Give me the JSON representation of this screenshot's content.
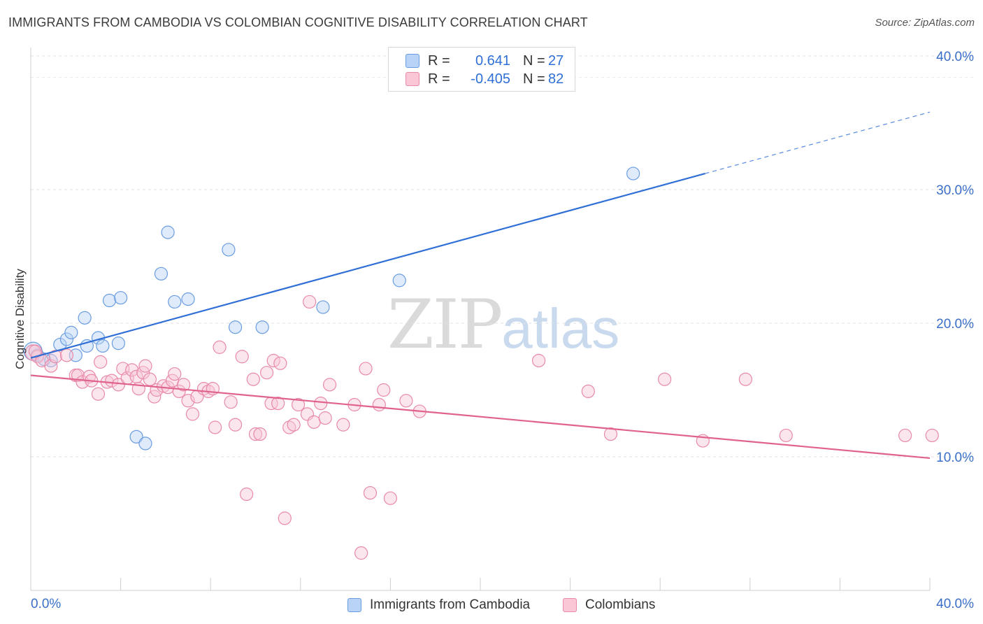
{
  "header": {
    "title": "IMMIGRANTS FROM CAMBODIA VS COLOMBIAN COGNITIVE DISABILITY CORRELATION CHART",
    "source": "Source: ZipAtlas.com"
  },
  "watermark": {
    "zip": "ZIP",
    "atlas": "atlas"
  },
  "legend": {
    "r_label": "R =",
    "n_label": "N =",
    "series": [
      {
        "name": "Immigrants from Cambodia",
        "r": "0.641",
        "n": "27",
        "fill": "#b9d3f6",
        "stroke": "#6a9de0",
        "line": "#2f6fd6"
      },
      {
        "name": "Colombians",
        "r": "-0.405",
        "n": "82",
        "fill": "#f9c7d6",
        "stroke": "#e88aa8",
        "line": "#e0628f"
      }
    ]
  },
  "chart_data": {
    "type": "scatter",
    "title": "IMMIGRANTS FROM CAMBODIA VS COLOMBIAN COGNITIVE DISABILITY CORRELATION CHART",
    "xlabel": "",
    "ylabel": "Cognitive Disability",
    "xlim": [
      0,
      40
    ],
    "ylim": [
      0,
      40
    ],
    "x_tick_labels": [
      "0.0%",
      "40.0%"
    ],
    "y_ticks": [
      10,
      20,
      30,
      40
    ],
    "y_tick_labels": [
      "10.0%",
      "20.0%",
      "30.0%",
      "40.0%"
    ],
    "grid": true,
    "legend_position": "top-center",
    "series": [
      {
        "name": "Immigrants from Cambodia",
        "r": 0.641,
        "n": 27,
        "color": "#6a9de0",
        "trend": {
          "x0": 0,
          "y0": 17.4,
          "x1": 30.0,
          "y1": 31.2,
          "dash_to_x": 40.0,
          "dash_to_y": 35.8
        },
        "points": [
          [
            0.1,
            17.9
          ],
          [
            0.3,
            17.6
          ],
          [
            0.6,
            17.3
          ],
          [
            0.9,
            17.2
          ],
          [
            1.3,
            18.4
          ],
          [
            1.6,
            18.8
          ],
          [
            1.8,
            19.3
          ],
          [
            2.0,
            17.6
          ],
          [
            2.4,
            20.4
          ],
          [
            2.5,
            18.3
          ],
          [
            3.0,
            18.9
          ],
          [
            3.2,
            18.3
          ],
          [
            3.5,
            21.7
          ],
          [
            3.9,
            18.5
          ],
          [
            4.0,
            21.9
          ],
          [
            4.7,
            11.5
          ],
          [
            5.1,
            11.0
          ],
          [
            5.8,
            23.7
          ],
          [
            6.1,
            26.8
          ],
          [
            6.4,
            21.6
          ],
          [
            7.0,
            21.8
          ],
          [
            8.8,
            25.5
          ],
          [
            9.1,
            19.7
          ],
          [
            10.3,
            19.7
          ],
          [
            13.0,
            21.2
          ],
          [
            16.4,
            23.2
          ],
          [
            26.8,
            31.2
          ]
        ]
      },
      {
        "name": "Colombians",
        "r": -0.405,
        "n": 82,
        "color": "#e88aa8",
        "trend": {
          "x0": 0,
          "y0": 16.1,
          "x1": 40,
          "y1": 9.9
        },
        "points": [
          [
            0.1,
            17.8
          ],
          [
            0.3,
            17.5
          ],
          [
            0.5,
            17.2
          ],
          [
            0.9,
            16.8
          ],
          [
            1.1,
            17.5
          ],
          [
            1.6,
            17.6
          ],
          [
            2.0,
            16.1
          ],
          [
            2.1,
            16.1
          ],
          [
            2.3,
            15.6
          ],
          [
            2.6,
            16.0
          ],
          [
            2.7,
            15.7
          ],
          [
            3.0,
            14.7
          ],
          [
            3.1,
            17.1
          ],
          [
            3.4,
            15.6
          ],
          [
            3.6,
            15.7
          ],
          [
            3.9,
            15.4
          ],
          [
            4.1,
            16.6
          ],
          [
            4.3,
            15.9
          ],
          [
            4.5,
            16.5
          ],
          [
            4.7,
            16.0
          ],
          [
            4.8,
            15.1
          ],
          [
            5.0,
            16.3
          ],
          [
            5.1,
            16.8
          ],
          [
            5.3,
            15.8
          ],
          [
            5.5,
            14.5
          ],
          [
            5.6,
            15.0
          ],
          [
            5.9,
            15.3
          ],
          [
            6.1,
            15.2
          ],
          [
            6.3,
            15.7
          ],
          [
            6.4,
            16.2
          ],
          [
            6.6,
            14.9
          ],
          [
            6.8,
            15.4
          ],
          [
            7.0,
            14.2
          ],
          [
            7.2,
            13.2
          ],
          [
            7.4,
            14.5
          ],
          [
            7.7,
            15.1
          ],
          [
            7.9,
            14.9
          ],
          [
            8.1,
            15.1
          ],
          [
            8.2,
            12.2
          ],
          [
            8.4,
            18.2
          ],
          [
            8.9,
            14.1
          ],
          [
            9.1,
            12.4
          ],
          [
            9.4,
            17.5
          ],
          [
            9.6,
            7.2
          ],
          [
            9.9,
            15.8
          ],
          [
            10.0,
            11.7
          ],
          [
            10.2,
            11.7
          ],
          [
            10.5,
            16.3
          ],
          [
            10.7,
            14.0
          ],
          [
            10.8,
            17.2
          ],
          [
            11.0,
            14.0
          ],
          [
            11.1,
            17.0
          ],
          [
            11.3,
            5.4
          ],
          [
            11.5,
            12.2
          ],
          [
            11.7,
            12.4
          ],
          [
            11.9,
            13.9
          ],
          [
            12.3,
            13.2
          ],
          [
            12.4,
            21.6
          ],
          [
            12.6,
            12.6
          ],
          [
            12.9,
            14.0
          ],
          [
            13.1,
            12.9
          ],
          [
            13.3,
            15.4
          ],
          [
            13.9,
            12.4
          ],
          [
            14.4,
            13.9
          ],
          [
            14.7,
            2.8
          ],
          [
            14.9,
            16.6
          ],
          [
            15.1,
            7.3
          ],
          [
            15.5,
            13.9
          ],
          [
            15.7,
            15.0
          ],
          [
            16.0,
            6.9
          ],
          [
            16.7,
            14.2
          ],
          [
            17.3,
            13.4
          ],
          [
            22.6,
            17.2
          ],
          [
            24.8,
            14.9
          ],
          [
            25.8,
            11.7
          ],
          [
            28.2,
            15.8
          ],
          [
            29.9,
            11.2
          ],
          [
            31.8,
            15.8
          ],
          [
            33.6,
            11.6
          ],
          [
            38.9,
            11.6
          ],
          [
            40.1,
            11.6
          ],
          [
            0.2,
            17.9
          ]
        ]
      }
    ]
  }
}
